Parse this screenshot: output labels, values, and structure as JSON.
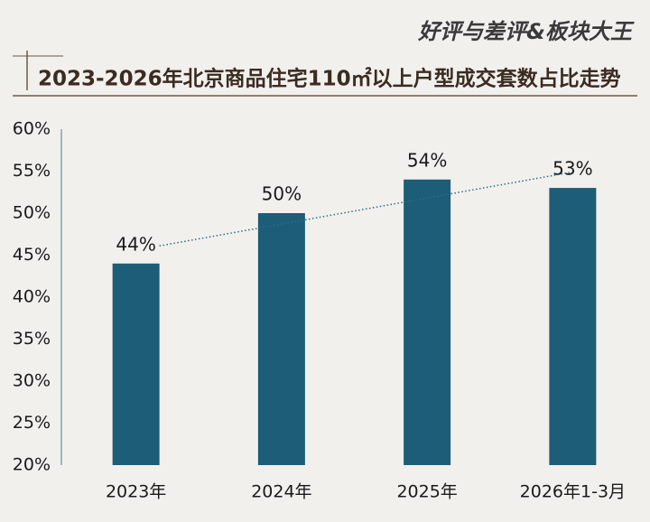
{
  "chart_data": {
    "type": "bar",
    "brand": "好评与差评&板块大王",
    "title": "2023-2026年北京商品住宅110㎡以上户型成交套数占比走势",
    "categories": [
      "2023年",
      "2024年",
      "2025年",
      "2026年1-3月"
    ],
    "values": [
      44,
      50,
      54,
      53
    ],
    "value_labels": [
      "44%",
      "50%",
      "54%",
      "53%"
    ],
    "color": "#1d5d78",
    "trendline": true,
    "trendline_color": "#2a6f86",
    "ylim": [
      20,
      60
    ],
    "yticks": [
      {
        "value": 20,
        "label": "20%"
      },
      {
        "value": 25,
        "label": "25%"
      },
      {
        "value": 30,
        "label": "30%"
      },
      {
        "value": 35,
        "label": "35%"
      },
      {
        "value": 40,
        "label": "40%"
      },
      {
        "value": 45,
        "label": "45%"
      },
      {
        "value": 50,
        "label": "50%"
      },
      {
        "value": 55,
        "label": "55%"
      },
      {
        "value": 60,
        "label": "60%"
      }
    ],
    "grid": false
  }
}
